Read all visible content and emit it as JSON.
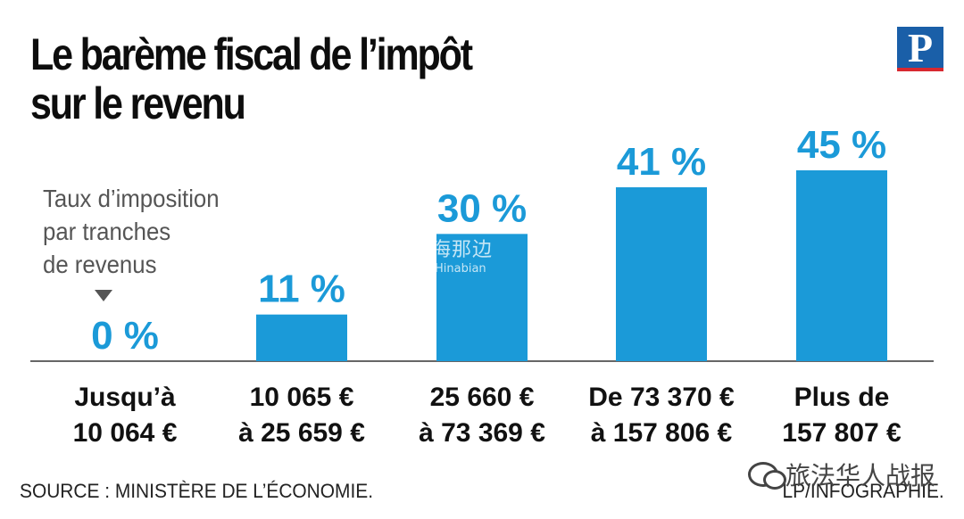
{
  "header": {
    "title_line1": "Le barème fiscal de l’impôt",
    "title_line2": "sur le revenu",
    "logo_letter": "P"
  },
  "legend": {
    "line1": "Taux d’imposition",
    "line2": "par tranches",
    "line3": "de revenus"
  },
  "chart_data": {
    "type": "bar",
    "title": "Le barème fiscal de l’impôt sur le revenu",
    "ylabel": "Taux d’imposition par tranches de revenus",
    "xlabel": "",
    "ylim": [
      0,
      45
    ],
    "grid": false,
    "bar_color": "#1b9ad8",
    "categories": [
      [
        "Jusqu’à",
        "10 064 €"
      ],
      [
        "10 065 €",
        "à 25 659 €"
      ],
      [
        "25 660  €",
        "à 73 369 €"
      ],
      [
        "De 73 370 €",
        "à 157 806 €"
      ],
      [
        "Plus de",
        "157 807 €"
      ]
    ],
    "values": [
      0,
      11,
      30,
      41,
      45
    ],
    "data_labels": [
      "0 %",
      "11 %",
      "30 %",
      "41 %",
      "45 %"
    ]
  },
  "footer": {
    "source": "SOURCE : MINISTÈRE DE L’ÉCONOMIE.",
    "credit": "LP/INFOGRAPHIE."
  },
  "wechat": {
    "label": "旅法华人战报"
  },
  "watermark": {
    "cn": "海那边",
    "en": "Hinabian"
  }
}
